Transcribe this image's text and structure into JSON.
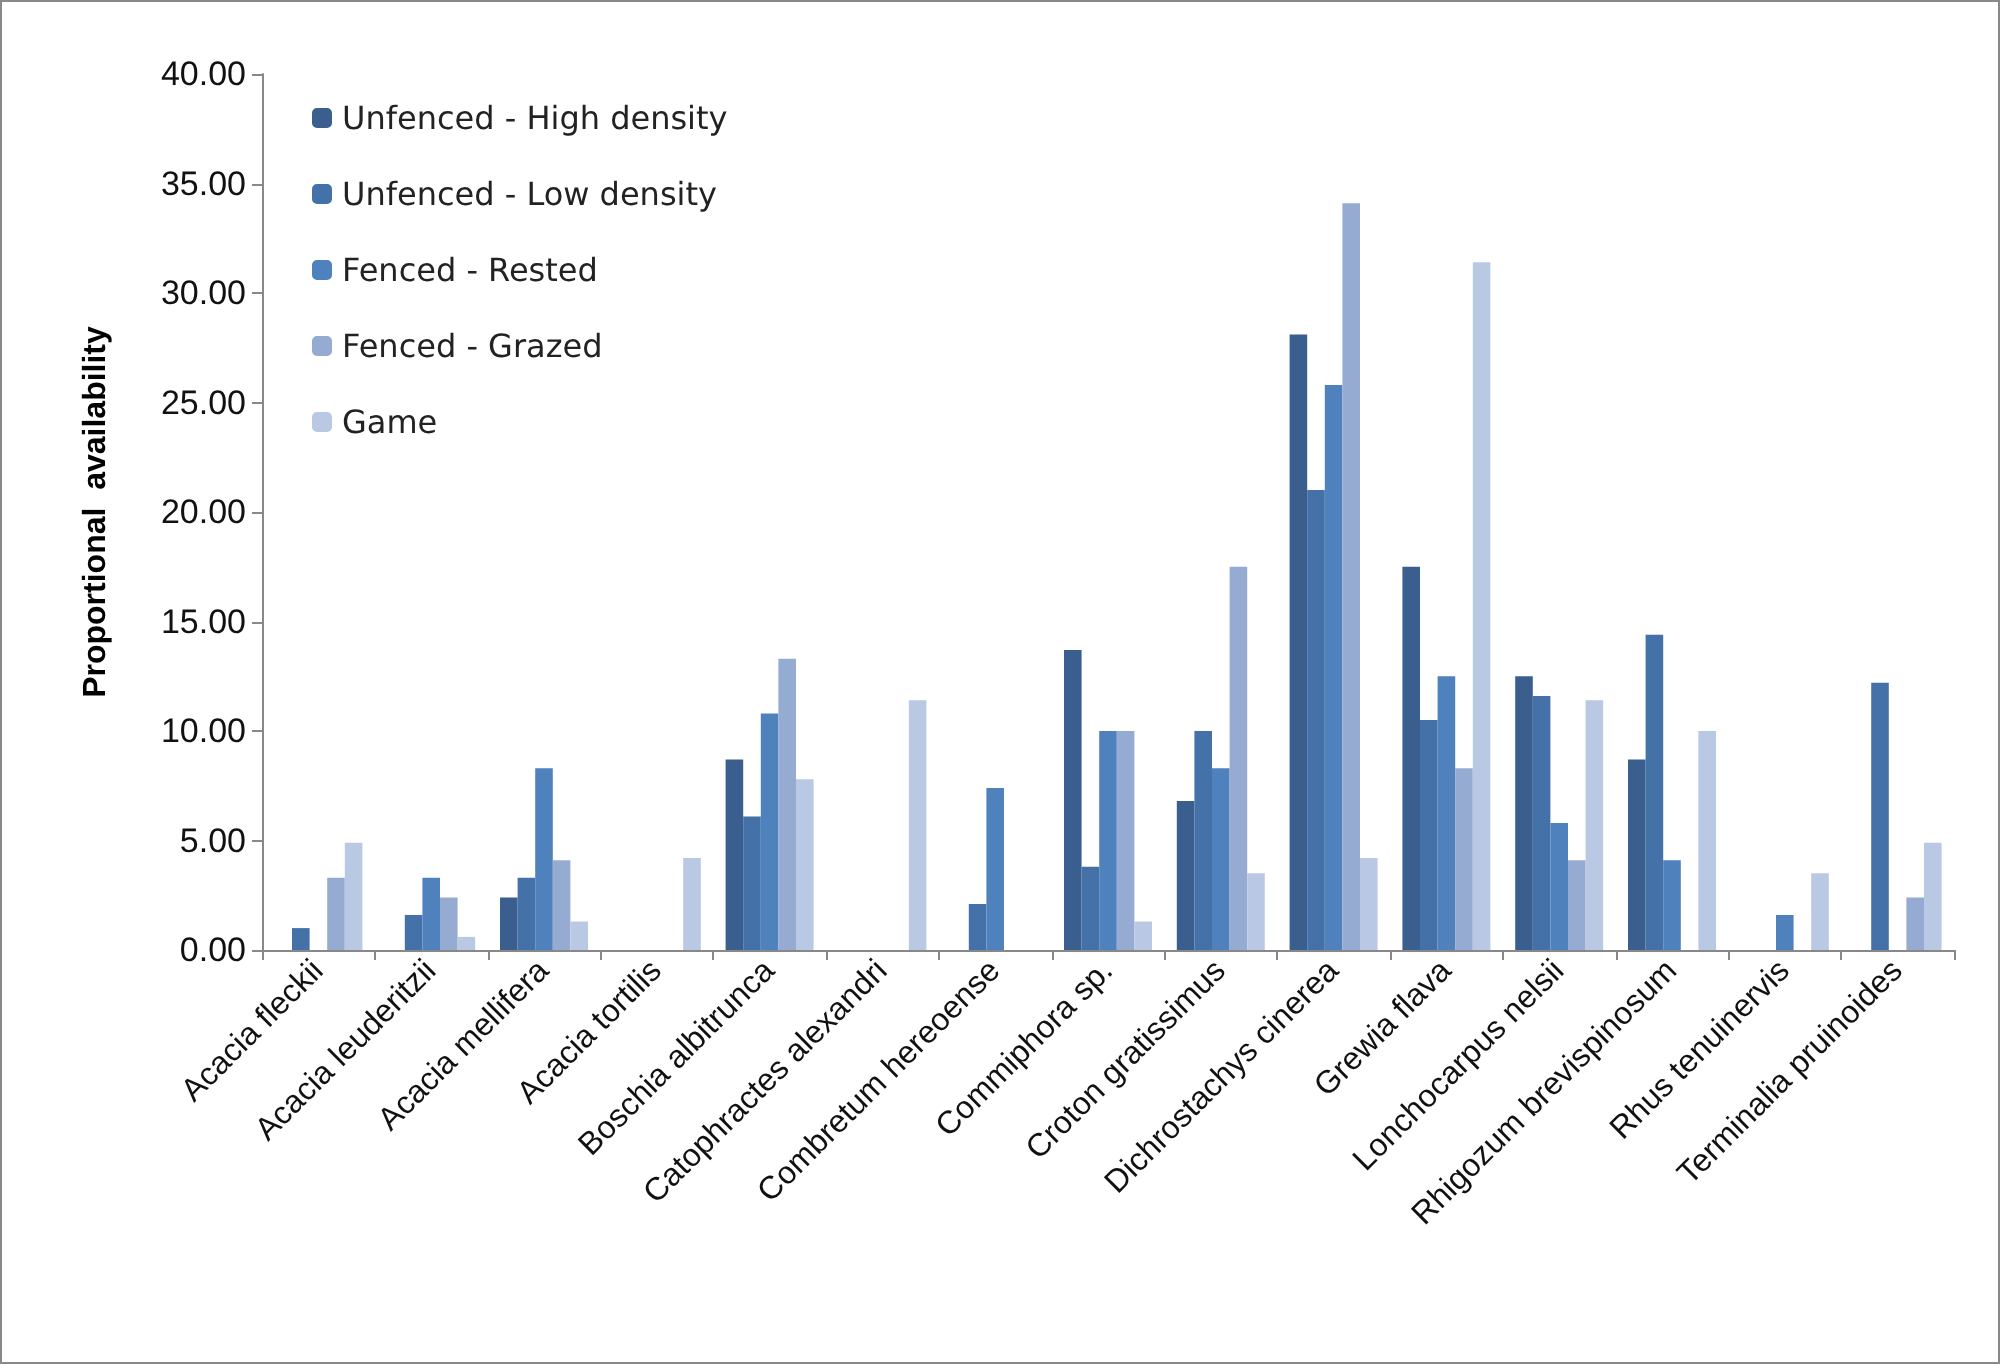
{
  "chart_data": {
    "type": "bar",
    "ylabel": "Proportional  availability",
    "categories": [
      "Acacia fleckii",
      "Acacia leuderitzii",
      "Acacia mellifera",
      "Acacia tortilis",
      "Boschia albitrunca",
      "Catophractes alexandri",
      "Combretum hereoense",
      "Commiphora sp.",
      "Croton gratissimus",
      "Dichrostachys cinerea",
      "Grewia flava",
      "Lonchocarpus nelsii",
      "Rhigozum brevispinosum",
      "Rhus tenuinervis",
      "Terminalia pruinoides"
    ],
    "series": [
      {
        "name": "Unfenced - High density",
        "color": "#3a5f8f",
        "values": [
          0,
          0,
          2.4,
          0,
          8.7,
          0,
          0,
          13.7,
          6.8,
          28.1,
          17.5,
          12.5,
          8.7,
          0,
          0
        ]
      },
      {
        "name": "Unfenced - Low density",
        "color": "#4472a8",
        "values": [
          1.0,
          1.6,
          3.3,
          0,
          6.1,
          0,
          2.1,
          3.8,
          10.0,
          21.0,
          10.5,
          11.6,
          14.4,
          0,
          12.2
        ]
      },
      {
        "name": "Fenced - Rested",
        "color": "#4f81bd",
        "values": [
          0,
          3.3,
          8.3,
          0,
          10.8,
          0,
          7.4,
          10.0,
          8.3,
          25.8,
          12.5,
          5.8,
          4.1,
          1.6,
          0
        ]
      },
      {
        "name": "Fenced - Grazed",
        "color": "#95abd2",
        "values": [
          3.3,
          2.4,
          4.1,
          0,
          13.3,
          0,
          0,
          10.0,
          17.5,
          34.1,
          8.3,
          4.1,
          0,
          0,
          2.4
        ]
      },
      {
        "name": "Game",
        "color": "#bac9e3",
        "values": [
          4.9,
          0.6,
          1.3,
          4.2,
          7.8,
          11.4,
          0,
          1.3,
          3.5,
          4.2,
          31.4,
          11.4,
          10.0,
          3.5,
          4.9
        ]
      }
    ],
    "ylim": [
      0,
      40
    ],
    "yticks": [
      {
        "value": 0,
        "label": "0.00"
      },
      {
        "value": 5,
        "label": "5.00"
      },
      {
        "value": 10,
        "label": "10.00"
      },
      {
        "value": 15,
        "label": "15.00"
      },
      {
        "value": 20,
        "label": "20.00"
      },
      {
        "value": 25,
        "label": "25.00"
      },
      {
        "value": 30,
        "label": "30.00"
      },
      {
        "value": 35,
        "label": "35.00"
      },
      {
        "value": 40,
        "label": "40.00"
      }
    ],
    "grid": false,
    "legend": "top left"
  }
}
